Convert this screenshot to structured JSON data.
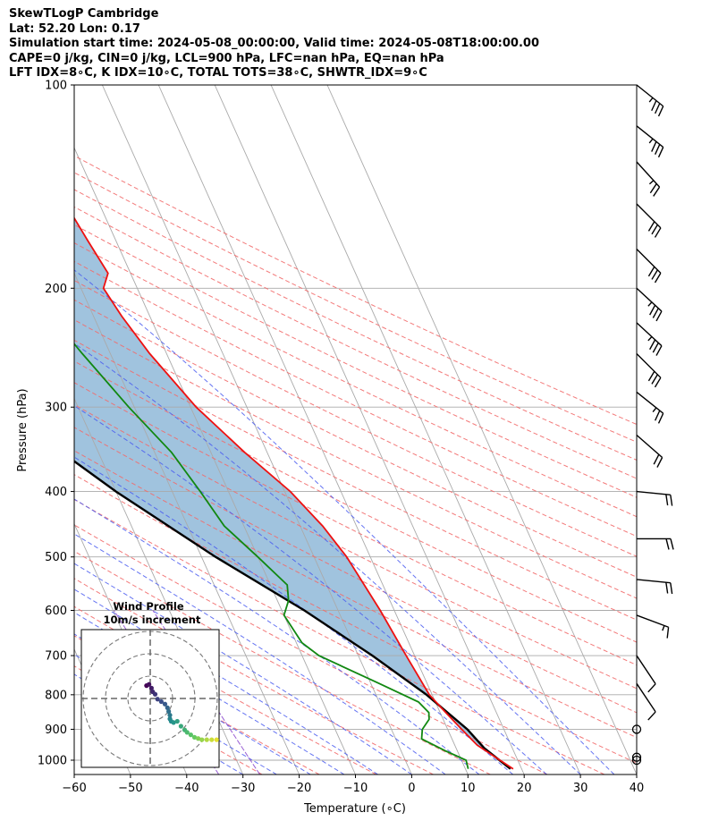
{
  "header": {
    "line1": "SkewTLogP Cambridge",
    "line2": "Lat: 52.20   Lon: 0.17",
    "line3": "Simulation start time: 2024-05-08_00:00:00, Valid time: 2024-05-08T18:00:00.00",
    "line4": "CAPE=0 j/kg, CIN=0 j/kg, LCL=900 hPa, LFC=nan hPa, EQ=nan hPa",
    "line5": "LFT IDX=8∘C, K IDX=10∘C, TOTAL TOTS=38∘C, SHWTR_IDX=9∘C"
  },
  "hodograph": {
    "title": "Wind Profile",
    "subtitle": "10m/s increment"
  },
  "chart_data": {
    "type": "skewt",
    "xlabel": "Temperature (∘C)",
    "ylabel": "Pressure (hPa)",
    "xlim": [
      -60,
      40
    ],
    "ylim": [
      1050,
      100
    ],
    "xticks": [
      -60,
      -50,
      -40,
      -30,
      -20,
      -10,
      0,
      10,
      20,
      30,
      40
    ],
    "xtick_labels": [
      "−60",
      "−50",
      "−40",
      "−30",
      "−20",
      "−10",
      "0",
      "10",
      "20",
      "30",
      "40"
    ],
    "yticks": [
      100,
      200,
      300,
      400,
      500,
      600,
      700,
      800,
      900,
      1000
    ],
    "colors": {
      "temperature": "#ee1111",
      "dewpoint": "#118811",
      "parcel": "#000000",
      "fill": "#8fb8d8",
      "dry_adiabat": "#f26b6b",
      "moist_adiabat": "#4a5cf0",
      "mixing_ratio": "#8844cc",
      "isotherm": "#aaaaaa"
    },
    "series": [
      {
        "name": "Temperature",
        "points": [
          [
            18.5,
            1030
          ],
          [
            14,
            950
          ],
          [
            12.5,
            900
          ],
          [
            11,
            850
          ],
          [
            9.5,
            800
          ],
          [
            8.5,
            700
          ],
          [
            7.5,
            600
          ],
          [
            5.8,
            500
          ],
          [
            4,
            450
          ],
          [
            1,
            400
          ],
          [
            -4,
            350
          ],
          [
            -9,
            300
          ],
          [
            -13,
            250
          ],
          [
            -15,
            220
          ],
          [
            -16,
            200
          ],
          [
            -14,
            190
          ],
          [
            -15,
            170
          ],
          [
            -16,
            150
          ],
          [
            -18,
            130
          ],
          [
            -19,
            120
          ],
          [
            -20,
            110
          ],
          [
            -21,
            100
          ]
        ]
      },
      {
        "name": "Dewpoint",
        "points": [
          [
            10.5,
            1030
          ],
          [
            10.8,
            1000
          ],
          [
            8,
            970
          ],
          [
            4.6,
            930
          ],
          [
            5.5,
            900
          ],
          [
            7.5,
            870
          ],
          [
            8,
            850
          ],
          [
            7,
            820
          ],
          [
            1.5,
            770
          ],
          [
            -7,
            700
          ],
          [
            -9,
            670
          ],
          [
            -10,
            610
          ],
          [
            -8,
            580
          ],
          [
            -7,
            550
          ],
          [
            -10,
            500
          ],
          [
            -13.5,
            450
          ],
          [
            -15,
            400
          ],
          [
            -17,
            350
          ],
          [
            -21,
            300
          ],
          [
            -25,
            250
          ],
          [
            -27.5,
            220
          ],
          [
            -29.5,
            200
          ],
          [
            -27.5,
            190
          ],
          [
            -26.5,
            180
          ],
          [
            -27,
            165
          ],
          [
            -29,
            145
          ],
          [
            -32.5,
            135
          ],
          [
            -30,
            120
          ],
          [
            -27.5,
            110
          ],
          [
            -25,
            100
          ]
        ]
      },
      {
        "name": "Parcel",
        "points": [
          [
            18,
            1030
          ],
          [
            15,
            960
          ],
          [
            13.5,
            900
          ],
          [
            9,
            800
          ],
          [
            2.5,
            700
          ],
          [
            -6,
            600
          ],
          [
            -17.5,
            500
          ],
          [
            -30,
            400
          ],
          [
            -44,
            300
          ],
          [
            -62,
            200
          ],
          [
            -75,
            150
          ],
          [
            -85,
            120
          ],
          [
            -92,
            100
          ]
        ]
      }
    ],
    "winds": [
      {
        "p": 100,
        "u": -15,
        "v": 12
      },
      {
        "p": 115,
        "u": -15,
        "v": 12
      },
      {
        "p": 130,
        "u": -10,
        "v": 11
      },
      {
        "p": 150,
        "u": -12,
        "v": 12
      },
      {
        "p": 175,
        "u": -12,
        "v": 12
      },
      {
        "p": 200,
        "u": -13,
        "v": 12
      },
      {
        "p": 225,
        "u": -13,
        "v": 12
      },
      {
        "p": 250,
        "u": -12,
        "v": 12
      },
      {
        "p": 285,
        "u": -10,
        "v": 8
      },
      {
        "p": 330,
        "u": -8,
        "v": 7
      },
      {
        "p": 400,
        "u": -10,
        "v": 1
      },
      {
        "p": 470,
        "u": -10,
        "v": 0
      },
      {
        "p": 540,
        "u": -10,
        "v": 1
      },
      {
        "p": 610,
        "u": -8,
        "v": 3
      },
      {
        "p": 700,
        "u": -4,
        "v": 6
      },
      {
        "p": 770,
        "u": -4,
        "v": 6
      },
      {
        "p": 900,
        "u": 0,
        "v": 0
      },
      {
        "p": 990,
        "u": 0,
        "v": 0
      },
      {
        "p": 1000,
        "u": 0,
        "v": 0
      }
    ],
    "hodograph_points": [
      [
        -0.3,
        0.9
      ],
      [
        -0.1,
        1.0
      ],
      [
        0.1,
        0.7
      ],
      [
        0.2,
        0.4
      ],
      [
        0.4,
        0.2
      ],
      [
        0.6,
        -0.2
      ],
      [
        0.9,
        -0.4
      ],
      [
        1.2,
        -0.6
      ],
      [
        1.4,
        -0.9
      ],
      [
        1.5,
        -1.2
      ],
      [
        1.6,
        -1.5
      ],
      [
        1.6,
        -1.8
      ],
      [
        1.7,
        -2.0
      ],
      [
        1.9,
        -2.1
      ],
      [
        2.2,
        -2.0
      ],
      [
        2.5,
        -2.4
      ],
      [
        2.8,
        -2.7
      ],
      [
        3.0,
        -2.9
      ],
      [
        3.3,
        -3.1
      ],
      [
        3.6,
        -3.3
      ],
      [
        3.9,
        -3.4
      ],
      [
        4.2,
        -3.5
      ],
      [
        4.6,
        -3.5
      ],
      [
        5.0,
        -3.5
      ],
      [
        5.4,
        -3.5
      ],
      [
        5.8,
        -3.5
      ]
    ]
  }
}
